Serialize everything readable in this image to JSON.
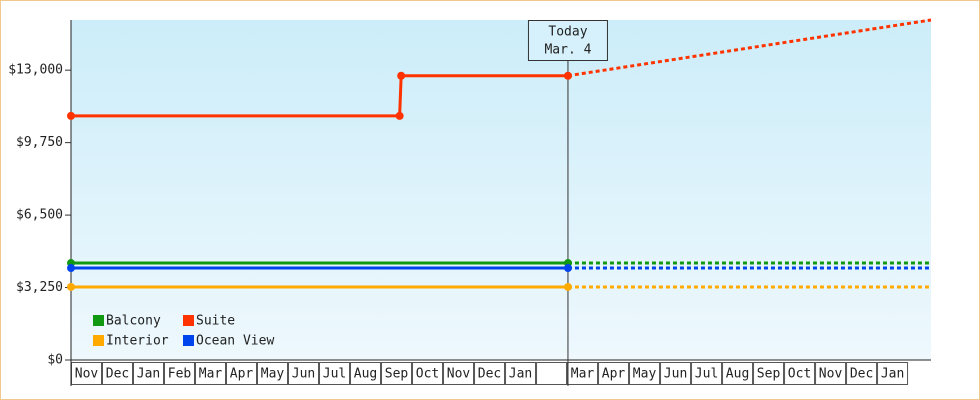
{
  "chart_data": {
    "type": "line",
    "categories": [
      "Nov",
      "Dec",
      "Jan",
      "Feb",
      "Mar",
      "Apr",
      "May",
      "Jun",
      "Jul",
      "Aug",
      "Sep",
      "Oct",
      "Nov",
      "Dec",
      "Jan",
      null,
      "Mar",
      "Apr",
      "May",
      "Jun",
      "Jul",
      "Aug",
      "Sep",
      "Oct",
      "Nov",
      "Dec",
      "Jan"
    ],
    "xlim": [
      0,
      27.74
    ],
    "ylim": [
      0,
      15250
    ],
    "yticks": [
      {
        "value": 0,
        "label": "$0"
      },
      {
        "value": 3250,
        "label": "$3,250"
      },
      {
        "value": 6500,
        "label": "$6,500"
      },
      {
        "value": 9750,
        "label": "$9,750"
      },
      {
        "value": 13000,
        "label": "$13,000"
      }
    ],
    "today": {
      "x": 16.03,
      "label": "Today",
      "date": "Mar. 4"
    },
    "series": [
      {
        "name": "Balcony",
        "color": "#119911",
        "x": [
          0,
          16.03,
          27.74
        ],
        "values": [
          4350,
          4350,
          4350
        ]
      },
      {
        "name": "Suite",
        "color": "#ff3300",
        "x": [
          0,
          10.6,
          10.65,
          16.03,
          27.74
        ],
        "values": [
          10950,
          10950,
          12750,
          12750,
          15250
        ]
      },
      {
        "name": "Interior",
        "color": "#ffaa00",
        "x": [
          0,
          16.03,
          27.74
        ],
        "values": [
          3275,
          3275,
          3275
        ]
      },
      {
        "name": "Ocean View",
        "color": "#0044ee",
        "x": [
          0,
          16.03,
          27.74
        ],
        "values": [
          4125,
          4125,
          4125
        ]
      }
    ]
  }
}
